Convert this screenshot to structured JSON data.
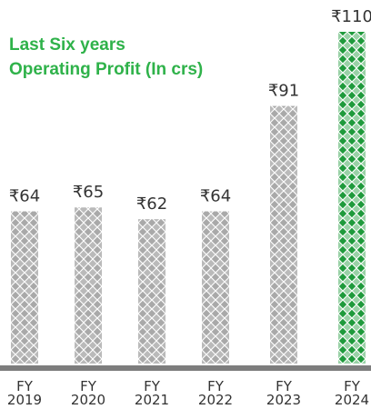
{
  "chart_data": {
    "type": "bar",
    "title": "Last Six years",
    "subtitle": "Operating Profit (In crs)",
    "categories": [
      "FY 2019",
      "FY 2020",
      "FY 2021",
      "FY 2022",
      "FY 2023",
      "FY 2024"
    ],
    "values": [
      64,
      65,
      62,
      64,
      91,
      110
    ],
    "value_labels": [
      "₹64",
      "₹65",
      "₹62",
      "₹64",
      "₹91",
      "₹110"
    ],
    "colors": [
      "#a9a9a9",
      "#a9a9a9",
      "#a9a9a9",
      "#a9a9a9",
      "#a9a9a9",
      "#1f9a3c"
    ],
    "ylim": [
      25,
      110
    ]
  }
}
